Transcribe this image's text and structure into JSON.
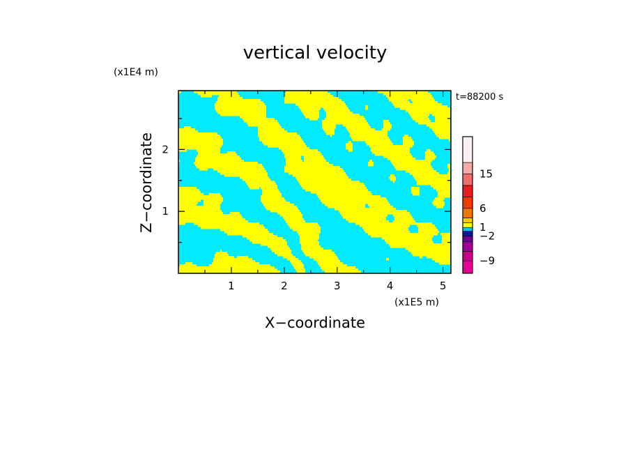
{
  "chart_data": {
    "type": "heatmap",
    "title": "vertical velocity",
    "xlabel": "X−coordinate",
    "ylabel": "Z−coordinate",
    "x_unit": "(x1E5 m)",
    "y_unit": "(x1E4 m)",
    "time_label": "t=88200 s",
    "xlim": [
      0,
      5.15
    ],
    "ylim": [
      0,
      2.95
    ],
    "x_ticks": [
      1,
      2,
      3,
      4,
      5
    ],
    "y_ticks": [
      1,
      2
    ],
    "x_tick_labels": [
      "1",
      "2",
      "3",
      "4",
      "5"
    ],
    "y_tick_labels": [
      "1",
      "2"
    ],
    "colorbar": {
      "levels": [
        -12,
        -9,
        -6,
        -4,
        -2,
        -1,
        1,
        2,
        4,
        6,
        9,
        12,
        15,
        20,
        25
      ],
      "colors": [
        "#e60096",
        "#c8008c",
        "#a00096",
        "#6e0096",
        "#1414a0",
        "#00c8ff",
        "#ffff00",
        "#ffc800",
        "#f07800",
        "#f03c00",
        "#e61e1e",
        "#f06e6e",
        "#f5aaaa",
        "#fff0f0"
      ],
      "tick_values": [
        15,
        6,
        1,
        -2,
        -9
      ],
      "tick_labels": [
        "15",
        "6",
        "1",
        "−2",
        "−9"
      ]
    },
    "field_colors": {
      "negative": "#00ebff",
      "positive": "#ffff00"
    }
  }
}
